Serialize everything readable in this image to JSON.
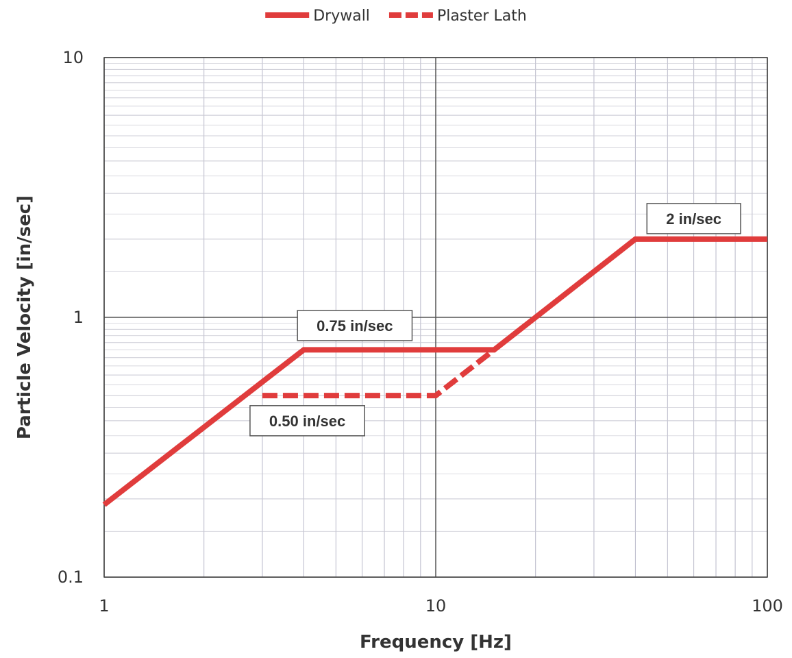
{
  "chart_data": {
    "type": "line",
    "title": "",
    "xlabel": "Frequency [Hz]",
    "ylabel": "Particle Velocity [in/sec]",
    "xscale": "log",
    "yscale": "log",
    "xlim": [
      1,
      100
    ],
    "ylim": [
      0.1,
      10
    ],
    "x_ticks": [
      1,
      10,
      100
    ],
    "x_tick_labels": [
      "1",
      "10",
      "100"
    ],
    "y_ticks": [
      0.1,
      1,
      10
    ],
    "y_tick_labels": [
      "0.1",
      "1",
      "10"
    ],
    "grid": true,
    "legend_position": "top-center",
    "series": [
      {
        "name": "Drywall",
        "style": "solid",
        "color": "#e03c3c",
        "x": [
          1,
          4,
          15,
          40,
          100
        ],
        "y": [
          0.19,
          0.75,
          0.75,
          2,
          2
        ]
      },
      {
        "name": "Plaster Lath",
        "style": "dashed",
        "color": "#e03c3c",
        "x": [
          3,
          10,
          15
        ],
        "y": [
          0.5,
          0.5,
          0.75
        ]
      }
    ],
    "annotations": [
      {
        "text": "2 in/sec",
        "x": 60,
        "y": 2.4
      },
      {
        "text": "0.75  in/sec",
        "x": 5.7,
        "y": 0.93
      },
      {
        "text": "0.50  in/sec",
        "x": 4.1,
        "y": 0.4
      }
    ]
  }
}
